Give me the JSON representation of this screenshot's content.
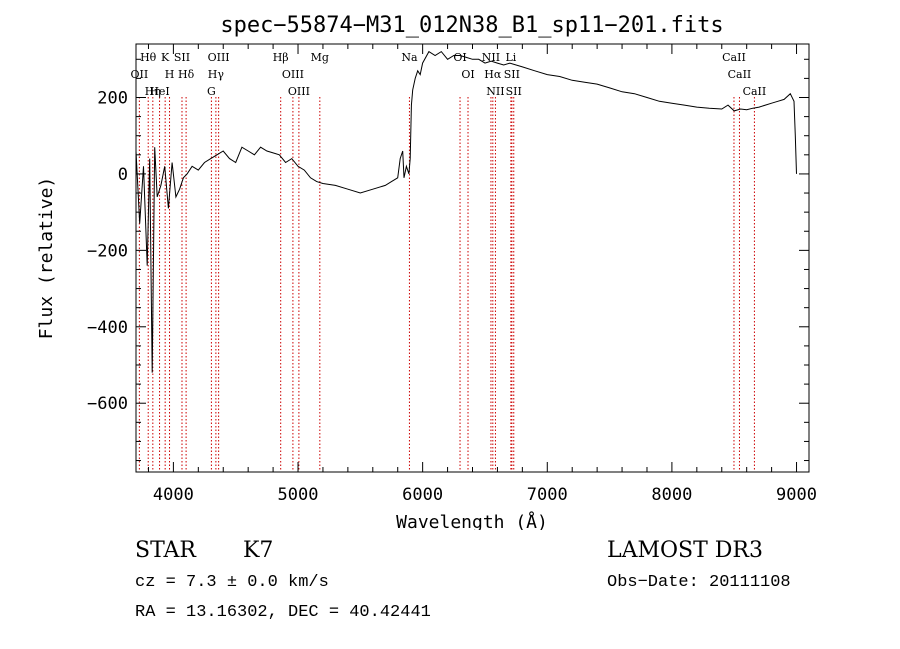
{
  "chart_data": {
    "type": "line",
    "title": "spec−55874−M31_012N38_B1_sp11−201.fits",
    "xlabel": "Wavelength (Å)",
    "ylabel": "Flux (relative)",
    "xlim": [
      3700,
      9100
    ],
    "ylim": [
      -780,
      340
    ],
    "xticks": [
      4000,
      5000,
      6000,
      7000,
      8000,
      9000
    ],
    "yticks": [
      -600,
      -400,
      -200,
      0,
      200
    ],
    "xtick_labels": [
      "4000",
      "5000",
      "6000",
      "7000",
      "8000",
      "9000"
    ],
    "ytick_labels": [
      "−600",
      "−400",
      "−200",
      "0",
      "200"
    ],
    "grid": false,
    "series": [
      {
        "name": "flux",
        "x": [
          3700,
          3730,
          3760,
          3790,
          3810,
          3830,
          3850,
          3870,
          3900,
          3930,
          3960,
          3990,
          4020,
          4050,
          4080,
          4110,
          4150,
          4200,
          4250,
          4300,
          4350,
          4400,
          4450,
          4500,
          4550,
          4600,
          4650,
          4700,
          4750,
          4800,
          4850,
          4900,
          4950,
          5000,
          5050,
          5100,
          5150,
          5200,
          5300,
          5400,
          5500,
          5600,
          5700,
          5750,
          5800,
          5820,
          5840,
          5850,
          5870,
          5890,
          5900,
          5910,
          5920,
          5940,
          5960,
          5980,
          6000,
          6050,
          6100,
          6150,
          6200,
          6250,
          6300,
          6350,
          6400,
          6450,
          6500,
          6550,
          6600,
          6650,
          6700,
          6800,
          6900,
          7000,
          7100,
          7200,
          7300,
          7400,
          7500,
          7600,
          7700,
          7800,
          7900,
          8000,
          8100,
          8200,
          8300,
          8400,
          8450,
          8500,
          8550,
          8600,
          8650,
          8700,
          8750,
          8800,
          8850,
          8900,
          8950,
          8980,
          8990,
          9000
        ],
        "y": [
          60,
          -130,
          20,
          -240,
          40,
          -520,
          70,
          -60,
          -30,
          20,
          -90,
          30,
          -60,
          -40,
          -10,
          0,
          20,
          10,
          30,
          40,
          50,
          60,
          40,
          30,
          70,
          60,
          50,
          70,
          60,
          55,
          50,
          30,
          40,
          20,
          10,
          -10,
          -20,
          -25,
          -30,
          -40,
          -50,
          -40,
          -30,
          -20,
          -10,
          40,
          60,
          -10,
          20,
          0,
          40,
          180,
          220,
          250,
          270,
          260,
          290,
          320,
          310,
          320,
          300,
          310,
          310,
          305,
          300,
          300,
          290,
          295,
          290,
          285,
          290,
          280,
          270,
          260,
          255,
          245,
          240,
          235,
          225,
          215,
          210,
          200,
          190,
          185,
          180,
          175,
          172,
          170,
          180,
          165,
          170,
          168,
          172,
          175,
          180,
          185,
          190,
          195,
          210,
          190,
          100,
          0
        ]
      }
    ],
    "lines": [
      {
        "name": "Hθ",
        "x": 3798
      },
      {
        "name": "OII",
        "x": 3727
      },
      {
        "name": "Hη",
        "x": 3835
      },
      {
        "name": "HeI",
        "x": 3889
      },
      {
        "name": "K",
        "x": 3934
      },
      {
        "name": "H",
        "x": 3969
      },
      {
        "name": "SII",
        "x": 4069
      },
      {
        "name": "Hδ",
        "x": 4102
      },
      {
        "name": "OIII",
        "x": 4363
      },
      {
        "name": "Hγ",
        "x": 4341
      },
      {
        "name": "G",
        "x": 4305
      },
      {
        "name": "Hβ",
        "x": 4861
      },
      {
        "name": "OIII",
        "x": 4959
      },
      {
        "name": "OIII",
        "x": 5007
      },
      {
        "name": "Mg",
        "x": 5175
      },
      {
        "name": "Na",
        "x": 5894
      },
      {
        "name": "OI",
        "x": 6300
      },
      {
        "name": "OI",
        "x": 6364
      },
      {
        "name": "NII",
        "x": 6548
      },
      {
        "name": "Hα",
        "x": 6563
      },
      {
        "name": "NII",
        "x": 6584
      },
      {
        "name": "Li",
        "x": 6708
      },
      {
        "name": "SII",
        "x": 6716
      },
      {
        "name": "SII",
        "x": 6731
      },
      {
        "name": "CaII",
        "x": 8498
      },
      {
        "name": "CaII",
        "x": 8542
      },
      {
        "name": "CaII",
        "x": 8662
      }
    ]
  },
  "info": {
    "object_class": "STAR",
    "subclass": "K7",
    "survey": "LAMOST DR3",
    "redshift": "cz = 7.3 ± 0.0 km/s",
    "obs_date": "Obs−Date: 20111108",
    "coords": "RA =  13.16302, DEC =  40.42441"
  },
  "colors": {
    "line": "#000000",
    "marker": "#cc0000",
    "axis": "#000000",
    "background": "#ffffff"
  }
}
